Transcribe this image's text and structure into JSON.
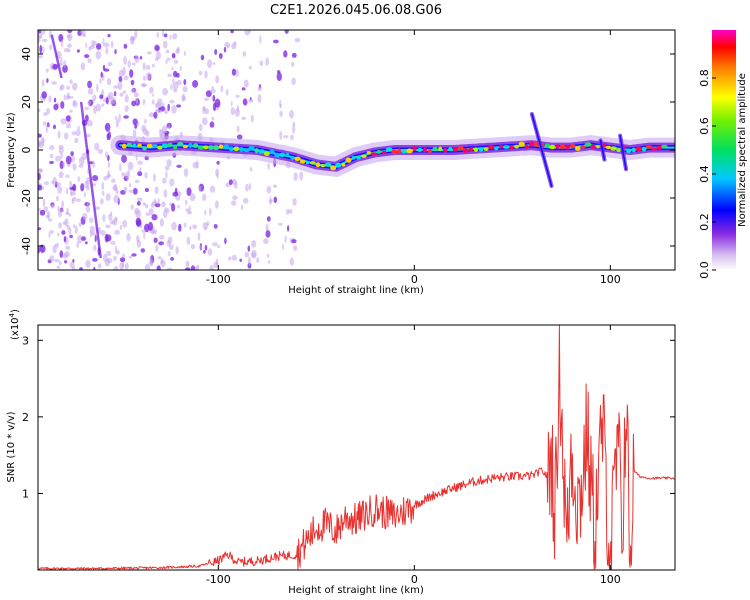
{
  "title": "C2E1.2026.045.06.08.G06",
  "chart_data": [
    {
      "type": "heatmap",
      "title": "C2E1.2026.045.06.08.G06",
      "xlabel": "Height of straight line (km)",
      "ylabel": "Frequency (Hz)",
      "xlim": [
        -192,
        133
      ],
      "ylim": [
        -50,
        50
      ],
      "x_ticks": [
        -100,
        0,
        100
      ],
      "x_tick_labels": [
        "-100",
        "0",
        "100"
      ],
      "y_ticks": [
        -40,
        -20,
        0,
        20,
        40
      ],
      "y_tick_labels": [
        "-40",
        "-20",
        "0",
        "20",
        "40"
      ],
      "ridge": {
        "x": [
          -150,
          -135,
          -120,
          -100,
          -80,
          -62,
          -50,
          -40,
          -30,
          -20,
          -10,
          0,
          20,
          40,
          60,
          70,
          80,
          90,
          100,
          110,
          120,
          133
        ],
        "freq": [
          2,
          1,
          2,
          1,
          0,
          -3,
          -6,
          -7,
          -3,
          -1,
          0,
          0,
          0,
          1,
          2,
          1,
          1,
          2,
          1,
          0,
          1,
          1
        ]
      },
      "colorbar": {
        "label": "Normalized spectral amplitude",
        "range": [
          0,
          1
        ],
        "ticks": [
          0.0,
          0.2,
          0.4,
          0.6,
          0.8
        ],
        "tick_labels": [
          "0.0",
          "0.2",
          "0.4",
          "0.6",
          "0.8"
        ]
      }
    },
    {
      "type": "line",
      "xlabel": "Height of straight line (km)",
      "ylabel": "SNR (10 * v/v)",
      "y_multiplier": "(x10^4)",
      "y_multiplier_base": "(x10",
      "y_multiplier_exp": "4",
      "y_multiplier_close": ")",
      "xlim": [
        -192,
        133
      ],
      "ylim": [
        0,
        3.2
      ],
      "x_ticks": [
        -100,
        0,
        100
      ],
      "x_tick_labels": [
        "-100",
        "0",
        "100"
      ],
      "y_ticks": [
        1,
        2,
        3
      ],
      "y_tick_labels": [
        "1",
        "2",
        "3"
      ],
      "series": [
        {
          "name": "SNR",
          "color": "#e8322f",
          "x": [
            -192,
            -160,
            -130,
            -110,
            -100,
            -95,
            -90,
            -80,
            -70,
            -60,
            -50,
            -45,
            -40,
            -35,
            -30,
            -20,
            -10,
            0,
            10,
            20,
            30,
            40,
            50,
            60,
            65,
            68,
            70,
            72,
            74,
            76,
            78,
            80,
            84,
            88,
            92,
            96,
            100,
            104,
            106,
            108,
            110,
            112,
            115,
            120,
            133
          ],
          "y": [
            0.02,
            0.02,
            0.03,
            0.05,
            0.12,
            0.2,
            0.1,
            0.12,
            0.18,
            0.2,
            0.55,
            0.6,
            0.5,
            0.7,
            0.65,
            0.8,
            0.7,
            0.85,
            0.98,
            1.07,
            1.15,
            1.2,
            1.22,
            1.23,
            1.3,
            1.22,
            1.5,
            0.7,
            2.9,
            1.4,
            0.3,
            1.6,
            0.8,
            1.8,
            0.5,
            1.9,
            0.2,
            1.7,
            0.4,
            2.3,
            0.2,
            1.3,
            1.22,
            1.2,
            1.2
          ]
        }
      ]
    }
  ]
}
